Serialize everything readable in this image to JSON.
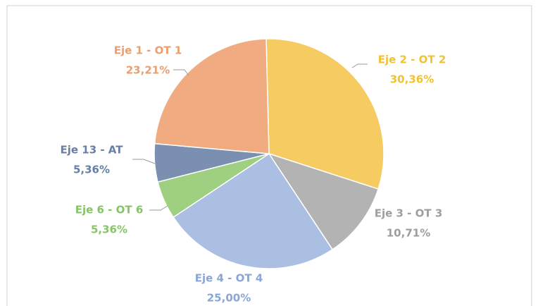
{
  "chart_data": {
    "type": "pie",
    "categories": [
      "Eje 2 - OT 2",
      "Eje 3 - OT 3",
      "Eje 4 - OT 4",
      "Eje 6 - OT 6",
      "Eje 13 - AT",
      "Eje 1 - OT 1"
    ],
    "values": [
      30.36,
      10.71,
      25.0,
      5.36,
      5.36,
      23.21
    ],
    "value_labels": [
      "30,36%",
      "10,71%",
      "25,00%",
      "5,36%",
      "5,36%",
      "23,21%"
    ],
    "colors": [
      "#f6cb61",
      "#b3b3b3",
      "#abbfe3",
      "#9fcf80",
      "#7b90b1",
      "#f0ab80"
    ],
    "label_colors": [
      "#f1c232",
      "#9e9e9e",
      "#8aa6d6",
      "#86c566",
      "#687fa5",
      "#eb9e6e"
    ]
  }
}
